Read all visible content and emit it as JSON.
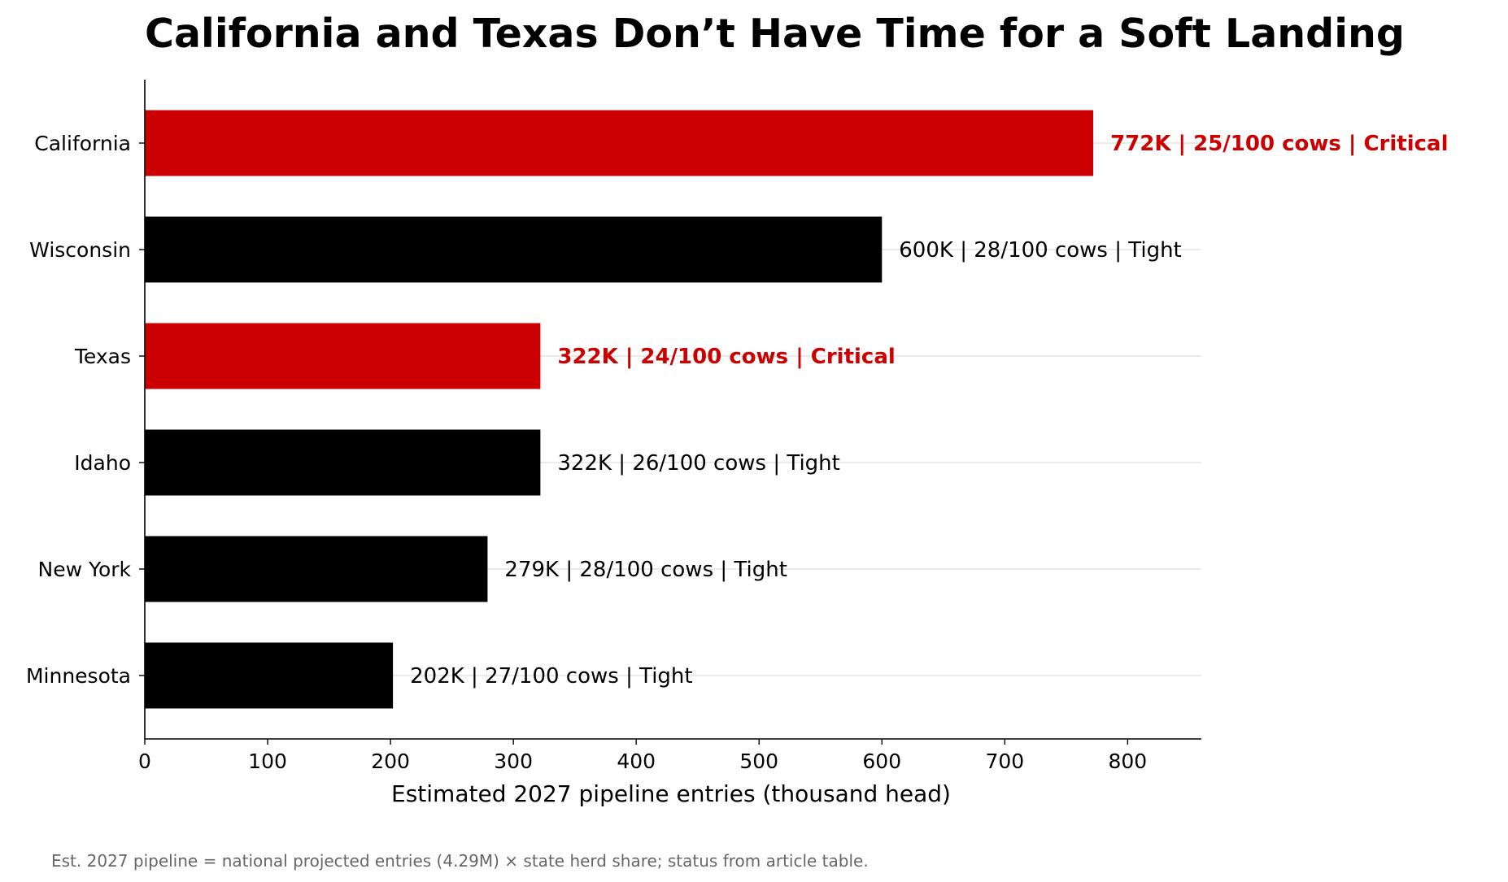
{
  "chart_data": {
    "type": "bar",
    "orientation": "horizontal",
    "title": "California and Texas Don’t Have Time for a Soft Landing",
    "xlabel": "Estimated 2027 pipeline entries (thousand head)",
    "ylabel": "",
    "xlim": [
      0,
      860
    ],
    "xticks": [
      0,
      100,
      200,
      300,
      400,
      500,
      600,
      700,
      800
    ],
    "grid": "horizontal lines at each category",
    "legend": "none",
    "categories": [
      "California",
      "Wisconsin",
      "Texas",
      "Idaho",
      "New York",
      "Minnesota"
    ],
    "values": [
      772,
      600,
      322,
      322,
      279,
      202
    ],
    "statuses": [
      "Critical",
      "Tight",
      "Critical",
      "Tight",
      "Tight",
      "Tight"
    ],
    "data_labels": [
      "772K | 25/100 cows | Critical",
      "600K | 28/100 cows | Tight",
      "322K | 24/100 cows | Critical",
      "322K | 26/100 cows | Tight",
      "279K | 28/100 cows | Tight",
      "202K | 27/100 cows | Tight"
    ],
    "colors": {
      "Critical": "#cc0000",
      "Tight": "#000000",
      "grid": "#dddddd",
      "axis": "#000000"
    },
    "footnote": "Est. 2027 pipeline = national projected entries (4.29M) × state herd share; status from article table."
  }
}
